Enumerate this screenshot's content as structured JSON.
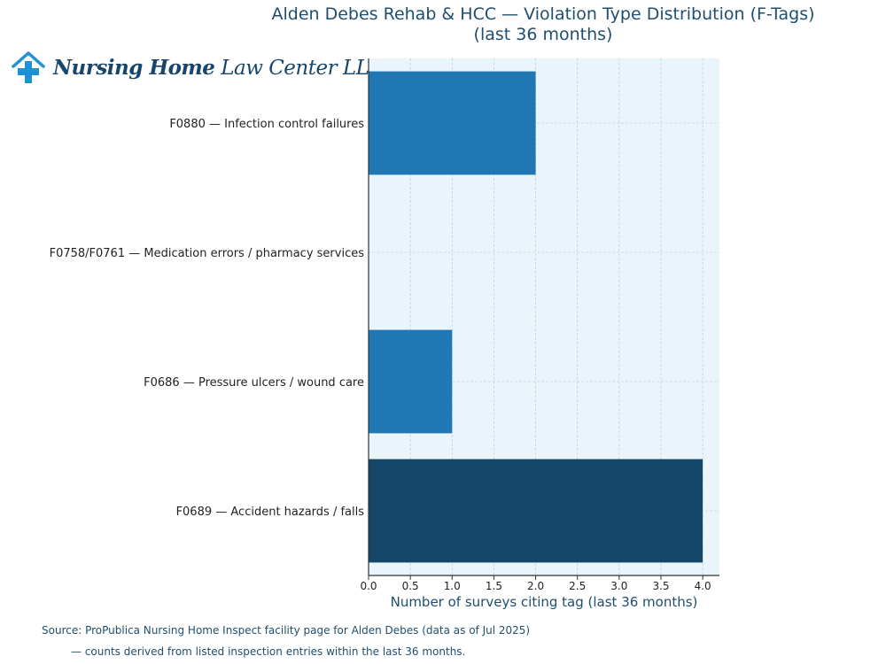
{
  "title": {
    "line1": "Alden Debes Rehab & HCC — Violation Type Distribution (F-Tags)",
    "line2": "(last 36 months)"
  },
  "logo": {
    "name_bold": "Nursing Home",
    "name_rest": "Law Center LLC"
  },
  "colors": {
    "bar": "#1f77b4",
    "bar_highlight": "#14466a",
    "plot_bg": "#e9f4fb",
    "text_blue": "#1f4e6e"
  },
  "chart_data": {
    "type": "bar",
    "orientation": "horizontal",
    "categories": [
      "F0880 — Infection control failures",
      "F0758/F0761 — Medication errors / pharmacy services",
      "F0686 — Pressure ulcers / wound care",
      "F0689 — Accident hazards / falls"
    ],
    "values": [
      2,
      0,
      1,
      4
    ],
    "highlight_index": 3,
    "xlabel": "Number of surveys citing tag (last 36 months)",
    "ylabel": "",
    "xlim": [
      0,
      4.2
    ],
    "xticks": [
      0,
      0.5,
      1,
      1.5,
      2,
      2.5,
      3,
      3.5,
      4
    ],
    "xtick_labels": [
      "0.0",
      "0.5",
      "1.0",
      "1.5",
      "2.0",
      "2.5",
      "3.0",
      "3.5",
      "4.0"
    ],
    "grid": true
  },
  "source": {
    "line1": "Source: ProPublica Nursing Home Inspect facility page for Alden Debes (data as of Jul 2025)",
    "line2": "— counts derived from listed inspection entries within the last 36 months."
  }
}
